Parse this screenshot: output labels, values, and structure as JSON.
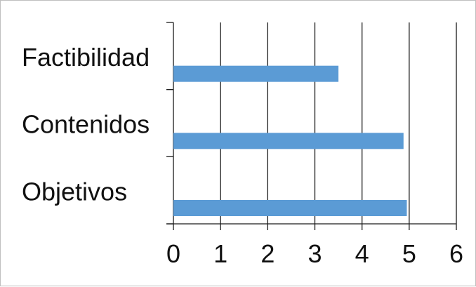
{
  "chart_data": {
    "type": "bar",
    "orientation": "horizontal",
    "categories": [
      "Objetivos",
      "Contenidos",
      "Factibilidad"
    ],
    "values": [
      4.95,
      4.88,
      3.5
    ],
    "xlim": [
      0,
      6
    ],
    "xticks": [
      "0",
      "1",
      "2",
      "3",
      "4",
      "5",
      "6"
    ],
    "title": "",
    "xlabel": "",
    "ylabel": "",
    "grid": "vertical",
    "legend": "none",
    "bar_color": "#5b9bd5"
  }
}
